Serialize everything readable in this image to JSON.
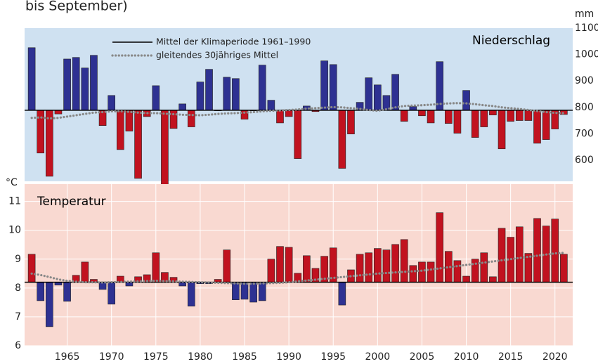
{
  "header": {
    "text": "bis September)"
  },
  "chart_data": [
    {
      "type": "bar",
      "title": "Niederschlag",
      "y_label": "mm",
      "axis_side": "right",
      "x": [
        1961,
        1962,
        1963,
        1964,
        1965,
        1966,
        1967,
        1968,
        1969,
        1970,
        1971,
        1972,
        1973,
        1974,
        1975,
        1976,
        1977,
        1978,
        1979,
        1980,
        1981,
        1982,
        1983,
        1984,
        1985,
        1986,
        1987,
        1988,
        1989,
        1990,
        1991,
        1992,
        1993,
        1994,
        1995,
        1996,
        1997,
        1998,
        1999,
        2000,
        2001,
        2002,
        2003,
        2004,
        2005,
        2006,
        2007,
        2008,
        2009,
        2010,
        2011,
        2012,
        2013,
        2014,
        2015,
        2016,
        2017,
        2018,
        2019,
        2020,
        2021
      ],
      "values": [
        1026,
        627,
        539,
        775,
        983,
        989,
        949,
        997,
        731,
        845,
        640,
        710,
        531,
        765,
        882,
        497,
        720,
        813,
        726,
        896,
        944,
        787,
        914,
        909,
        755,
        787,
        960,
        827,
        741,
        765,
        606,
        805,
        784,
        976,
        962,
        569,
        699,
        819,
        912,
        885,
        845,
        925,
        747,
        803,
        768,
        741,
        973,
        739,
        702,
        864,
        686,
        726,
        771,
        643,
        747,
        750,
        750,
        664,
        678,
        718,
        773
      ],
      "above_color": "#2e3192",
      "below_color": "#c1121f",
      "background": "#cfe1f1",
      "reference": {
        "name": "Mittel der Klimaperiode 1961–1990",
        "value": 789,
        "color": "#000000"
      },
      "moving_average": {
        "name": "gleitendes 30jähriges Mittel",
        "color": "#888888",
        "values": [
          760,
          762,
          758,
          760,
          765,
          770,
          775,
          780,
          782,
          785,
          785,
          783,
          780,
          778,
          778,
          776,
          774,
          772,
          771,
          770,
          772,
          775,
          777,
          778,
          780,
          782,
          785,
          787,
          788,
          790,
          792,
          795,
          797,
          799,
          801,
          800,
          797,
          794,
          790,
          787,
          793,
          800,
          805,
          807,
          808,
          810,
          813,
          815,
          816,
          815,
          812,
          808,
          805,
          800,
          797,
          794,
          790,
          786,
          782,
          779,
          778
        ]
      },
      "xlim": [
        1960.2,
        2022
      ],
      "ylim": [
        520,
        1100
      ],
      "yticks": [
        600,
        700,
        800,
        900,
        1000,
        1100
      ],
      "grid": false
    },
    {
      "type": "bar",
      "title": "Temperatur",
      "y_label": "°C",
      "axis_side": "left",
      "x": [
        1961,
        1962,
        1963,
        1964,
        1965,
        1966,
        1967,
        1968,
        1969,
        1970,
        1971,
        1972,
        1973,
        1974,
        1975,
        1976,
        1977,
        1978,
        1979,
        1980,
        1981,
        1982,
        1983,
        1984,
        1985,
        1986,
        1987,
        1988,
        1989,
        1990,
        1991,
        1992,
        1993,
        1994,
        1995,
        1996,
        1997,
        1998,
        1999,
        2000,
        2001,
        2002,
        2003,
        2004,
        2005,
        2006,
        2007,
        2008,
        2009,
        2010,
        2011,
        2012,
        2013,
        2014,
        2015,
        2016,
        2017,
        2018,
        2019,
        2020,
        2021
      ],
      "values": [
        9.17,
        7.56,
        6.66,
        8.1,
        7.54,
        8.44,
        8.9,
        8.3,
        7.95,
        7.44,
        8.41,
        8.07,
        8.39,
        8.46,
        9.22,
        8.54,
        8.37,
        8.07,
        7.37,
        8.15,
        8.15,
        8.3,
        9.32,
        7.59,
        7.61,
        7.51,
        7.56,
        9.0,
        9.44,
        9.41,
        8.51,
        9.12,
        8.68,
        9.1,
        9.39,
        7.41,
        8.63,
        9.17,
        9.22,
        9.37,
        9.32,
        9.51,
        9.68,
        8.78,
        8.9,
        8.9,
        10.61,
        9.27,
        8.95,
        8.41,
        9.0,
        9.22,
        8.39,
        10.07,
        9.76,
        10.12,
        9.2,
        10.41,
        10.15,
        10.39,
        9.17
      ],
      "above_color": "#c1121f",
      "below_color": "#2e3192",
      "background": "#f9d9d1",
      "reference": {
        "value": 8.2,
        "color": "#000000"
      },
      "moving_average": {
        "color": "#888888",
        "values": [
          8.5,
          8.45,
          8.38,
          8.3,
          8.25,
          8.22,
          8.2,
          8.2,
          8.19,
          8.2,
          8.21,
          8.22,
          8.23,
          8.24,
          8.25,
          8.24,
          8.23,
          8.22,
          8.21,
          8.2,
          8.19,
          8.18,
          8.17,
          8.16,
          8.15,
          8.15,
          8.16,
          8.17,
          8.18,
          8.2,
          8.23,
          8.26,
          8.29,
          8.32,
          8.35,
          8.38,
          8.41,
          8.44,
          8.47,
          8.5,
          8.52,
          8.54,
          8.56,
          8.58,
          8.6,
          8.64,
          8.68,
          8.72,
          8.76,
          8.8,
          8.84,
          8.88,
          8.92,
          8.96,
          9.0,
          9.04,
          9.08,
          9.12,
          9.16,
          9.2,
          9.22
        ]
      },
      "xlim": [
        1960.2,
        2022
      ],
      "xticks": [
        1965,
        1970,
        1975,
        1980,
        1985,
        1990,
        1995,
        2000,
        2005,
        2010,
        2015,
        2020
      ],
      "ylim": [
        6,
        11.6
      ],
      "yticks": [
        6,
        7,
        8,
        9,
        10,
        11
      ],
      "grid": true
    }
  ]
}
